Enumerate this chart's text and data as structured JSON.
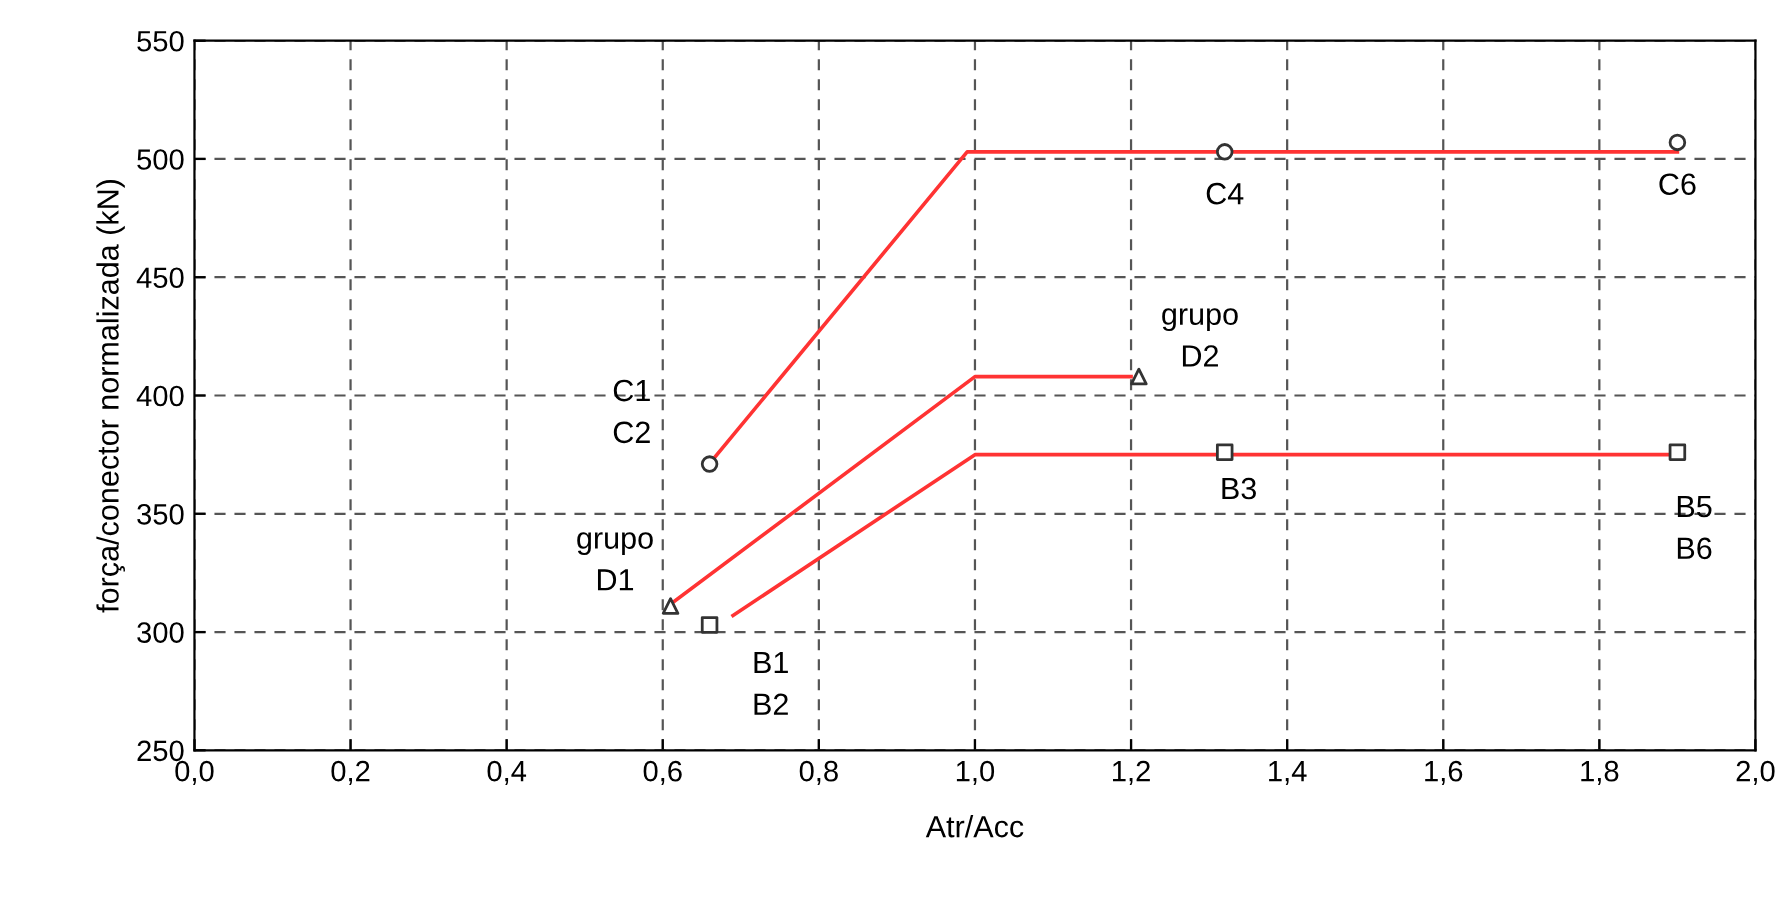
{
  "chart_data": {
    "type": "line",
    "xlabel": "Atr/Acc",
    "ylabel": "força/conector normalizada (kN)",
    "series": [
      {
        "color": "#ff3333",
        "x": [
          0.667,
          0.99,
          1.9
        ],
        "values": [
          374,
          503,
          503
        ]
      },
      {
        "color": "#ff3333",
        "x": [
          0.615,
          1.0,
          1.2
        ],
        "values": [
          313,
          408,
          408
        ]
      },
      {
        "color": "#ff3333",
        "x": [
          0.69,
          1.0,
          1.9
        ],
        "values": [
          307,
          375,
          375
        ]
      },
      {
        "type": "scatter",
        "color": "#333333",
        "marker": "circle",
        "x": [
          0.66,
          1.32,
          1.9
        ],
        "values": [
          371,
          503,
          507
        ]
      },
      {
        "type": "scatter",
        "color": "#333333",
        "marker": "triangle",
        "x": [
          0.61,
          1.21
        ],
        "values": [
          311,
          408
        ]
      },
      {
        "type": "scatter",
        "color": "#333333",
        "marker": "square",
        "x": [
          0.66,
          1.32,
          1.9
        ],
        "values": [
          303,
          376,
          376
        ]
      }
    ],
    "annotations": [
      {
        "text": "C1\nC2",
        "x": 0.66,
        "y": 371
      },
      {
        "text": "C4",
        "x": 1.32,
        "y": 503
      },
      {
        "text": "C6",
        "x": 1.9,
        "y": 507
      },
      {
        "text": "grupo\nD2",
        "x": 1.21,
        "y": 408
      },
      {
        "text": "grupo\nD1",
        "x": 0.61,
        "y": 311
      },
      {
        "text": "B1\nB2",
        "x": 0.66,
        "y": 303
      },
      {
        "text": "B3",
        "x": 1.32,
        "y": 376
      },
      {
        "text": "B5\nB6",
        "x": 1.9,
        "y": 376
      }
    ],
    "xlim": [
      0,
      2.0
    ],
    "ylim": [
      250,
      550
    ],
    "xticks": [
      {
        "value": 0,
        "label": "0,0"
      },
      {
        "value": 0.2,
        "label": "0,2"
      },
      {
        "value": 0.4,
        "label": "0,4"
      },
      {
        "value": 0.6,
        "label": "0,6"
      },
      {
        "value": 0.8,
        "label": "0,8"
      },
      {
        "value": 1.0,
        "label": "1,0"
      },
      {
        "value": 1.2,
        "label": "1,2"
      },
      {
        "value": 1.4,
        "label": "1,4"
      },
      {
        "value": 1.6,
        "label": "1,6"
      },
      {
        "value": 1.8,
        "label": "1,8"
      },
      {
        "value": 2.0,
        "label": "2,0"
      }
    ],
    "yticks": [
      250,
      300,
      350,
      400,
      450,
      500,
      550
    ],
    "grid": true,
    "line_style": "solid"
  }
}
